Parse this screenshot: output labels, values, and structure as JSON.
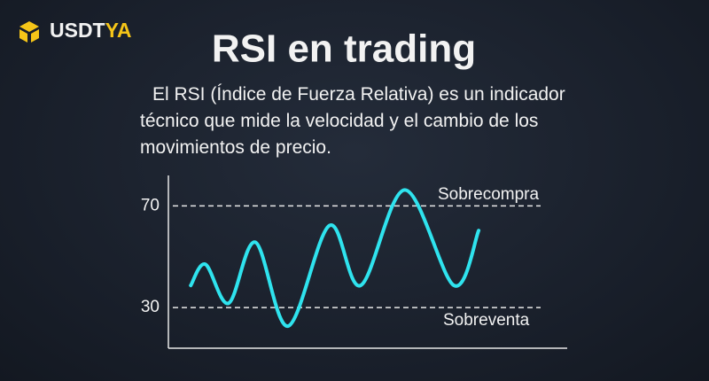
{
  "brand": {
    "main": "USDT",
    "accent": "YA"
  },
  "title": "RSI en trading",
  "description": "El RSI (Índice de Fuerza Relativa) es un indicador técnico que mide la velocidad y el cambio de los movimientos de precio.",
  "chart_data": {
    "type": "line",
    "x": [
      5.6,
      9.3,
      15.1,
      21.8,
      30,
      40.4,
      48.2,
      59.3,
      71.6,
      77.8
    ],
    "series": [
      {
        "name": "RSI",
        "color": "#2fe3ee",
        "values": [
          38.7,
          47,
          31.7,
          55.7,
          22.7,
          62.3,
          38.7,
          76.3,
          38.7,
          60.3
        ]
      }
    ],
    "xlim": [
      0,
      100
    ],
    "ylim": [
      14,
      82
    ],
    "yticks": [
      30,
      70
    ],
    "grid": true,
    "annotations": [
      "Sobrecompra",
      "Sobreventa"
    ]
  }
}
